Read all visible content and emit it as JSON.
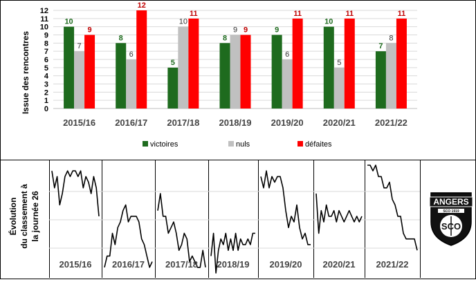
{
  "chart_data": [
    {
      "type": "bar",
      "ylabel": "Issue des rencontres",
      "categories": [
        "2015/16",
        "2016/17",
        "2017/18",
        "2018/19",
        "2019/20",
        "2020/21",
        "2021/22"
      ],
      "ylim": [
        0,
        12
      ],
      "yticks": [
        0,
        1,
        2,
        3,
        4,
        5,
        6,
        7,
        8,
        9,
        10,
        11,
        12
      ],
      "grid": true,
      "legend_position": "bottom",
      "series": [
        {
          "name": "victoires",
          "color": "#1e6b1e",
          "label_color": "#1e6b1e",
          "values": [
            10,
            8,
            5,
            8,
            9,
            10,
            7
          ]
        },
        {
          "name": "nuls",
          "color": "#c0c0c0",
          "label_color": "#333333",
          "values": [
            7,
            6,
            10,
            9,
            6,
            5,
            8
          ]
        },
        {
          "name": "défaites",
          "color": "#ff0000",
          "label_color": "#c00000",
          "values": [
            9,
            12,
            11,
            9,
            11,
            11,
            11
          ]
        }
      ]
    },
    {
      "type": "line",
      "ylabel": "Évolution du classement à la journée 26",
      "y_reversed": true,
      "ylim": [
        1,
        20
      ],
      "panels": [
        {
          "label": "2015/16",
          "values": [
            2,
            5,
            3,
            8,
            6,
            3,
            2,
            3,
            2,
            2,
            3,
            2,
            5,
            3,
            4,
            6,
            3,
            5,
            10
          ]
        },
        {
          "label": "2016/17",
          "values": [
            19,
            17,
            17,
            13,
            15,
            12,
            11,
            9,
            8,
            11,
            10,
            10,
            10,
            11,
            14,
            15,
            17,
            19,
            18
          ]
        },
        {
          "label": "2017/18",
          "values": [
            9,
            6,
            10,
            10,
            13,
            12,
            11,
            13,
            16,
            15,
            13,
            14,
            18,
            17,
            18,
            19,
            19,
            16,
            19
          ]
        },
        {
          "label": "2018/19",
          "values": [
            17,
            13,
            20,
            16,
            14,
            15,
            13,
            16,
            14,
            16,
            13,
            16,
            14,
            15,
            15,
            14,
            15,
            13,
            13
          ]
        },
        {
          "label": "2019/20",
          "values": [
            3,
            5,
            2,
            5,
            3,
            4,
            3,
            3,
            5,
            9,
            12,
            10,
            11,
            8,
            12,
            14,
            13,
            15,
            15
          ]
        },
        {
          "label": "2020/21",
          "values": [
            6,
            13,
            9,
            11,
            8,
            10,
            10,
            9,
            11,
            9,
            10,
            11,
            10,
            9,
            10,
            11,
            10,
            11,
            10
          ]
        },
        {
          "label": "2021/22",
          "values": [
            1,
            1,
            2,
            1,
            3,
            3,
            5,
            5,
            4,
            7,
            8,
            10,
            10,
            13,
            14,
            14,
            14,
            14,
            16
          ]
        }
      ]
    }
  ],
  "logo": {
    "text": "ANGERS",
    "inner_text": "SCO",
    "band_text": "SCO 1919"
  }
}
